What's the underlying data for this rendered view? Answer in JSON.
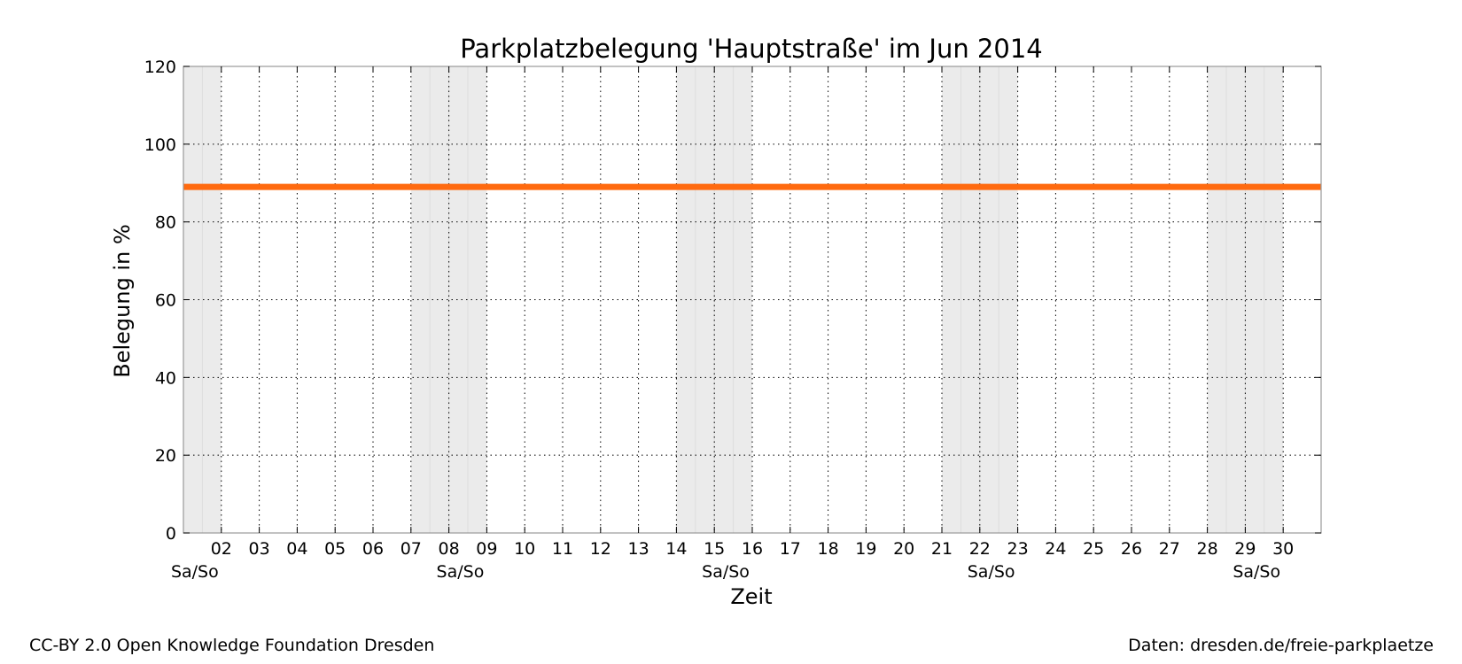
{
  "chart_data": {
    "type": "line",
    "title": "Parkplatzbelegung 'Hauptstraße' im Jun 2014",
    "xlabel": "Zeit",
    "ylabel": "Belegung in %",
    "xlim": [
      "2014-06-01",
      "2014-07-01"
    ],
    "ylim": [
      0,
      120
    ],
    "y_ticks": [
      0,
      20,
      40,
      60,
      80,
      100,
      120
    ],
    "x_tick_days": [
      2,
      3,
      4,
      5,
      6,
      7,
      8,
      9,
      10,
      11,
      12,
      13,
      14,
      15,
      16,
      17,
      18,
      19,
      20,
      21,
      22,
      23,
      24,
      25,
      26,
      27,
      28,
      29,
      30
    ],
    "x_tick_labels": [
      "02",
      "03",
      "04",
      "05",
      "06",
      "07",
      "08",
      "09",
      "10",
      "11",
      "12",
      "13",
      "14",
      "15",
      "16",
      "17",
      "18",
      "19",
      "20",
      "21",
      "22",
      "23",
      "24",
      "25",
      "26",
      "27",
      "28",
      "29",
      "30"
    ],
    "grid": true,
    "weekend_label": "Sa/So",
    "weekend_label_days": [
      1.3,
      8.3,
      15.3,
      22.3,
      29.3
    ],
    "weekend_bands": [
      {
        "start": "2014-06-01",
        "end": "2014-06-02"
      },
      {
        "start": "2014-06-07",
        "end": "2014-06-09"
      },
      {
        "start": "2014-06-14",
        "end": "2014-06-16"
      },
      {
        "start": "2014-06-21",
        "end": "2014-06-23"
      },
      {
        "start": "2014-06-28",
        "end": "2014-06-30"
      }
    ],
    "series": [
      {
        "color": "#ff6a0f",
        "x": [
          "2014-06-01",
          "2014-07-01"
        ],
        "values": [
          89,
          89
        ]
      }
    ]
  },
  "footer": {
    "left": "CC-BY 2.0 Open Knowledge Foundation Dresden",
    "right": "Daten: dresden.de/freie-parkplaetze"
  }
}
